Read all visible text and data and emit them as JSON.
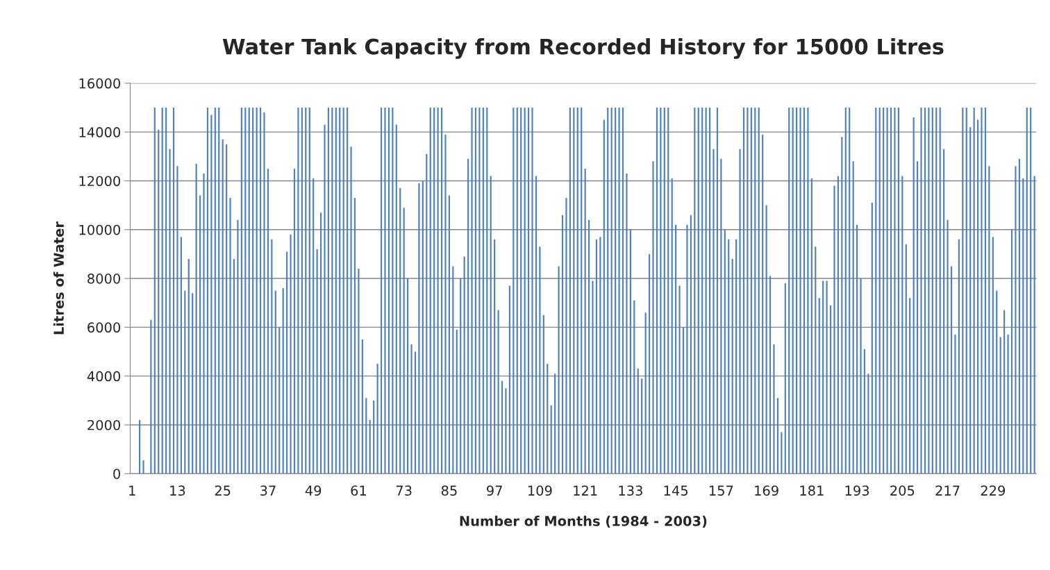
{
  "chart_data": {
    "type": "bar",
    "title": "Water Tank Capacity from Recorded History for 15000 Litres",
    "xlabel": "Number of Months (1984 - 2003)",
    "ylabel": "Litres of Water",
    "categories": [
      "1",
      null,
      null,
      null,
      null,
      null,
      null,
      null,
      null,
      null,
      null,
      null,
      "13",
      null,
      null,
      null,
      null,
      null,
      null,
      null,
      null,
      null,
      null,
      null,
      "25",
      null,
      null,
      null,
      null,
      null,
      null,
      null,
      null,
      null,
      null,
      null,
      "37",
      null,
      null,
      null,
      null,
      null,
      null,
      null,
      null,
      null,
      null,
      null,
      "49",
      null,
      null,
      null,
      null,
      null,
      null,
      null,
      null,
      null,
      null,
      null,
      "61",
      null,
      null,
      null,
      null,
      null,
      null,
      null,
      null,
      null,
      null,
      null,
      "73",
      null,
      null,
      null,
      null,
      null,
      null,
      null,
      null,
      null,
      null,
      null,
      "85",
      null,
      null,
      null,
      null,
      null,
      null,
      null,
      null,
      null,
      null,
      null,
      "97",
      null,
      null,
      null,
      null,
      null,
      null,
      null,
      null,
      null,
      null,
      null,
      "109",
      null,
      null,
      null,
      null,
      null,
      null,
      null,
      null,
      null,
      null,
      null,
      "121",
      null,
      null,
      null,
      null,
      null,
      null,
      null,
      null,
      null,
      null,
      null,
      "133",
      null,
      null,
      null,
      null,
      null,
      null,
      null,
      null,
      null,
      null,
      null,
      "145",
      null,
      null,
      null,
      null,
      null,
      null,
      null,
      null,
      null,
      null,
      null,
      "157",
      null,
      null,
      null,
      null,
      null,
      null,
      null,
      null,
      null,
      null,
      null,
      "169",
      null,
      null,
      null,
      null,
      null,
      null,
      null,
      null,
      null,
      null,
      null,
      "181",
      null,
      null,
      null,
      null,
      null,
      null,
      null,
      null,
      null,
      null,
      null,
      "193",
      null,
      null,
      null,
      null,
      null,
      null,
      null,
      null,
      null,
      null,
      null,
      "205",
      null,
      null,
      null,
      null,
      null,
      null,
      null,
      null,
      null,
      null,
      null,
      "217",
      null,
      null,
      null,
      null,
      null,
      null,
      null,
      null,
      null,
      null,
      null,
      "229",
      null,
      null,
      null,
      null,
      null,
      null,
      null,
      null,
      null,
      null,
      null
    ],
    "values": [
      0,
      0,
      2200,
      550,
      0,
      6300,
      15000,
      14100,
      15000,
      15000,
      13300,
      15000,
      12600,
      9700,
      7500,
      8800,
      7400,
      12700,
      11400,
      12300,
      15000,
      14700,
      15000,
      15000,
      13700,
      13500,
      11300,
      8800,
      10400,
      15000,
      15000,
      15000,
      15000,
      15000,
      15000,
      14800,
      12500,
      9600,
      7500,
      6000,
      7600,
      9100,
      9800,
      12500,
      15000,
      15000,
      15000,
      15000,
      12100,
      9200,
      10700,
      14300,
      15000,
      15000,
      15000,
      15000,
      15000,
      15000,
      13400,
      11300,
      8400,
      5500,
      3100,
      2200,
      3000,
      4500,
      15000,
      15000,
      15000,
      15000,
      14300,
      11700,
      10900,
      8000,
      5300,
      5000,
      11900,
      12000,
      13100,
      15000,
      15000,
      15000,
      15000,
      13900,
      11400,
      8500,
      5900,
      8000,
      8900,
      12900,
      15000,
      15000,
      15000,
      15000,
      15000,
      12200,
      9600,
      6700,
      3800,
      3500,
      7700,
      15000,
      15000,
      15000,
      15000,
      15000,
      15000,
      12200,
      9300,
      6500,
      4500,
      2800,
      4100,
      8500,
      10600,
      11300,
      15000,
      15000,
      15000,
      15000,
      12500,
      10400,
      7900,
      9600,
      9700,
      14500,
      15000,
      15000,
      15000,
      15000,
      15000,
      12300,
      10000,
      7100,
      4300,
      3900,
      6600,
      9000,
      12800,
      15000,
      15000,
      15000,
      15000,
      12100,
      10200,
      7700,
      6000,
      10200,
      10600,
      15000,
      15000,
      15000,
      15000,
      15000,
      13300,
      15000,
      12900,
      10000,
      9600,
      8800,
      9600,
      13300,
      15000,
      15000,
      15000,
      15000,
      15000,
      13900,
      11000,
      8100,
      5300,
      3100,
      1700,
      7800,
      15000,
      15000,
      15000,
      15000,
      15000,
      15000,
      12100,
      9300,
      7200,
      7900,
      7900,
      6900,
      11800,
      12200,
      13800,
      15000,
      15000,
      12800,
      10200,
      8000,
      5100,
      4100,
      11100,
      15000,
      15000,
      15000,
      15000,
      15000,
      15000,
      15000,
      12200,
      9400,
      7200,
      14600,
      12800,
      15000,
      15000,
      15000,
      15000,
      15000,
      15000,
      13300,
      10400,
      8500,
      5700,
      9600,
      15000,
      15000,
      14200,
      15000,
      14500,
      15000,
      15000,
      12600,
      9700,
      7500,
      5600,
      6700,
      5700,
      10000,
      12600,
      12900,
      12100,
      15000,
      15000,
      12200
    ],
    "color": "#4f81bd",
    "ylim": [
      0,
      16000
    ],
    "yticks": [
      0,
      2000,
      4000,
      6000,
      8000,
      10000,
      12000,
      14000,
      16000
    ],
    "grid": "y"
  }
}
